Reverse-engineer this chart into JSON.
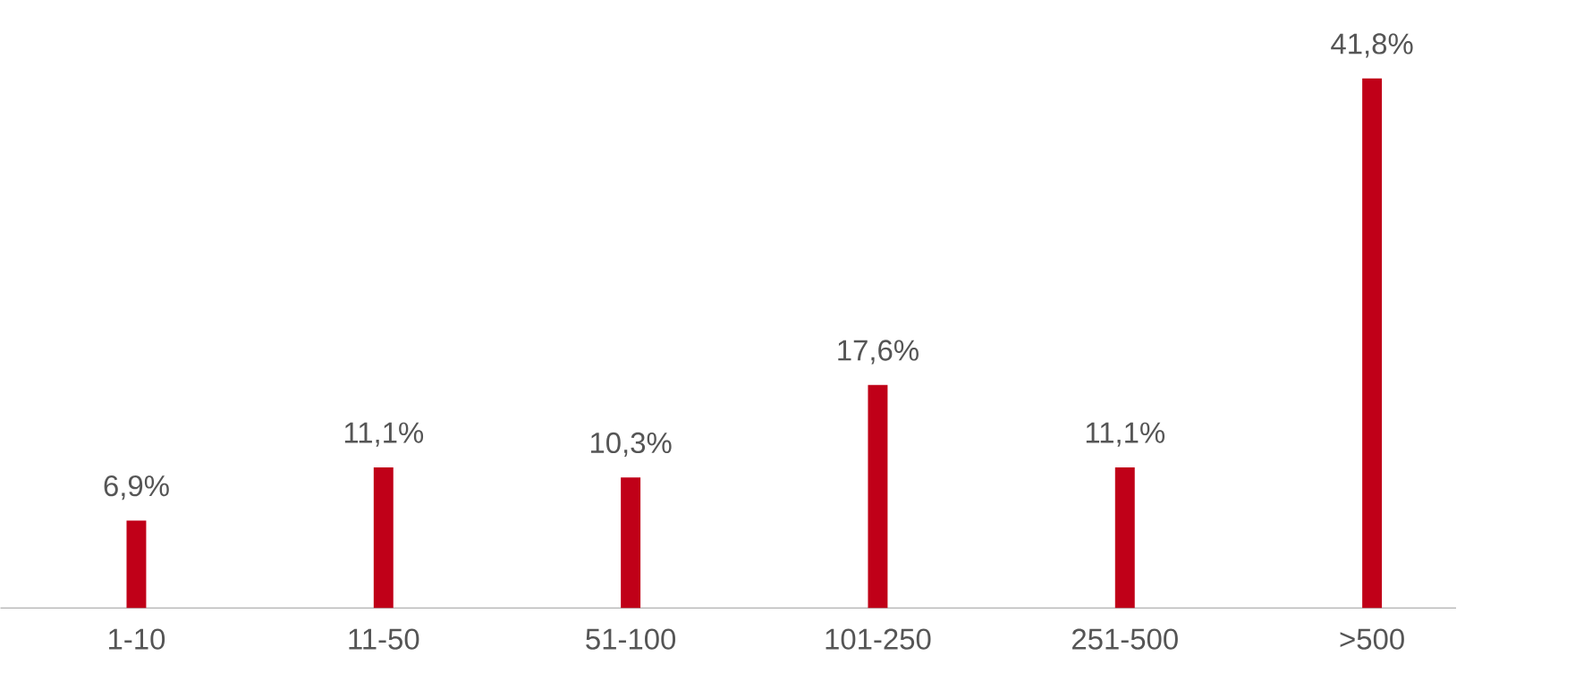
{
  "chart_data": {
    "type": "bar",
    "categories": [
      "1-10",
      "11-50",
      "51-100",
      "101-250",
      "251-500",
      ">500"
    ],
    "values": [
      6.9,
      11.1,
      10.3,
      17.6,
      11.1,
      41.8
    ],
    "value_labels": [
      "6,9%",
      "11,1%",
      "10,3%",
      "17,6%",
      "11,1%",
      "41,8%"
    ],
    "color": "#c00018"
  }
}
